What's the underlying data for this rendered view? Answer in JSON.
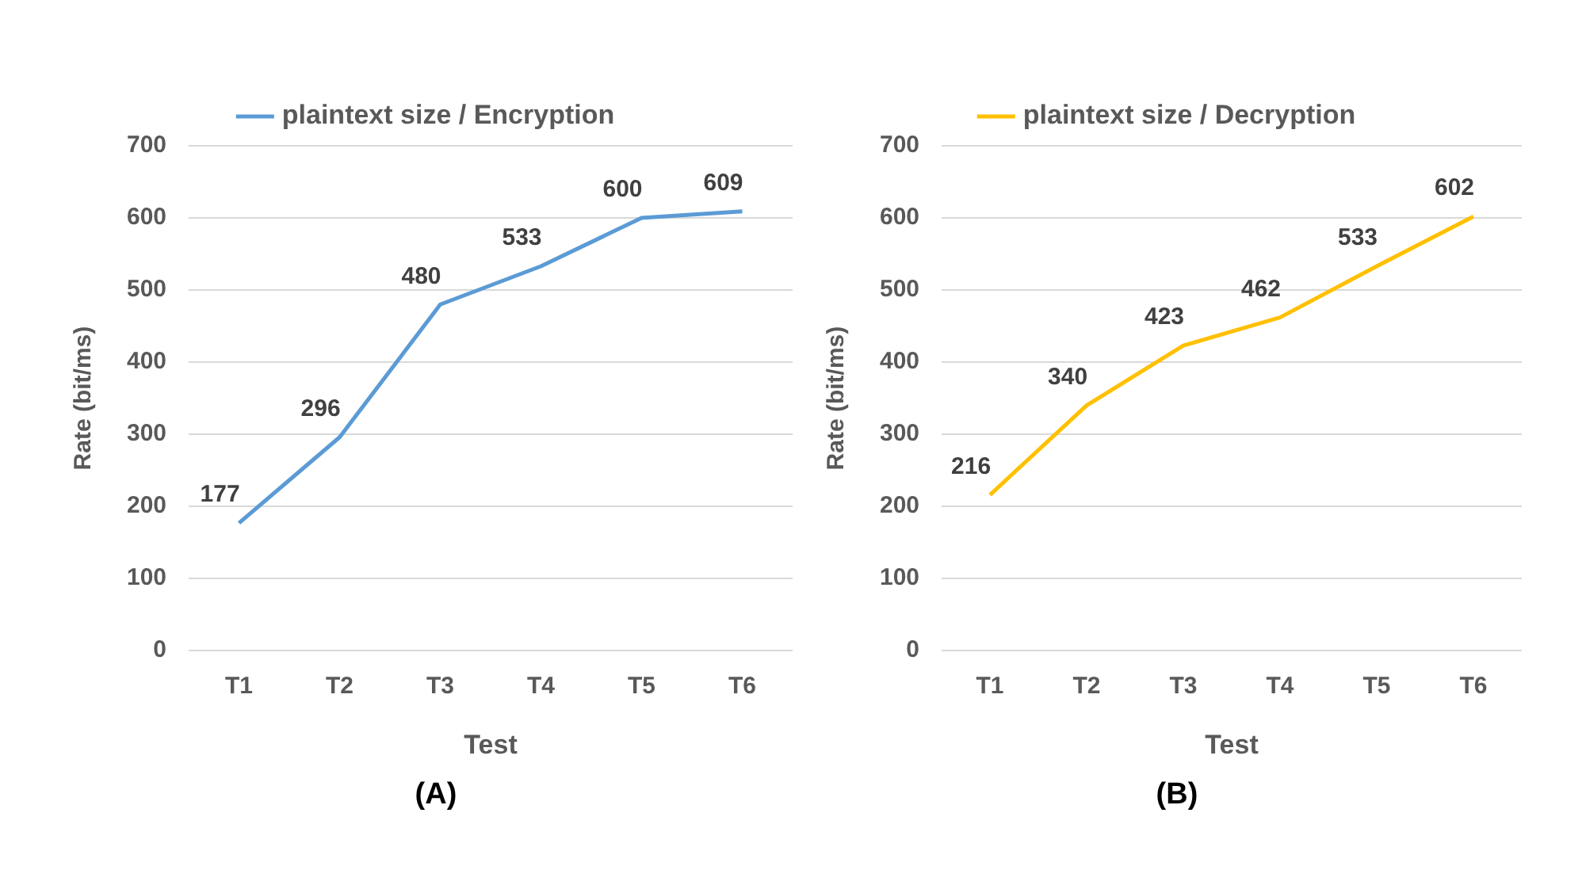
{
  "chart_data": [
    {
      "type": "line",
      "categories": [
        "T1",
        "T2",
        "T3",
        "T4",
        "T5",
        "T6"
      ],
      "series": [
        {
          "name": "plaintext size / Encryption",
          "color": "#5b9bd5",
          "values": [
            177,
            296,
            480,
            533,
            600,
            609
          ]
        }
      ],
      "xlabel": "Test",
      "ylabel": "Rate (bit/ms)",
      "ylim": [
        0,
        700
      ],
      "yticks": [
        0,
        100,
        200,
        300,
        400,
        500,
        600,
        700
      ],
      "grid": "y",
      "legend": "top",
      "data_labels": true,
      "marker": "none",
      "annotations": [
        "(A)"
      ]
    },
    {
      "type": "line",
      "categories": [
        "T1",
        "T2",
        "T3",
        "T4",
        "T5",
        "T6"
      ],
      "series": [
        {
          "name": "plaintext size / Decryption",
          "color": "#ffc000",
          "values": [
            216,
            340,
            423,
            462,
            533,
            602
          ]
        }
      ],
      "xlabel": "Test",
      "ylabel": "Rate (bit/ms)",
      "ylim": [
        0,
        700
      ],
      "yticks": [
        0,
        100,
        200,
        300,
        400,
        500,
        600,
        700
      ],
      "grid": "y",
      "legend": "top",
      "data_labels": true,
      "marker": "none",
      "annotations": [
        "(B)"
      ]
    }
  ]
}
